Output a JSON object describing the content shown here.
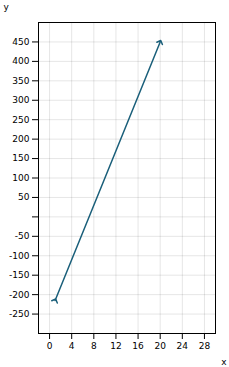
{
  "chart_data": {
    "type": "line",
    "xlabel": "x",
    "ylabel": "y",
    "x": [
      1.0,
      20.0
    ],
    "values": [
      -215,
      450
    ],
    "color": "#1a5f7a",
    "xlim": [
      -2,
      30
    ],
    "ylim": [
      -300,
      500
    ],
    "xticks": [
      0,
      4,
      8,
      12,
      16,
      20,
      24,
      28
    ],
    "yticks": [
      -250,
      -200,
      -150,
      -100,
      -50,
      {
        "value": 0,
        "label": ""
      },
      50,
      100,
      150,
      200,
      250,
      300,
      350,
      400,
      450
    ],
    "grid": true
  }
}
